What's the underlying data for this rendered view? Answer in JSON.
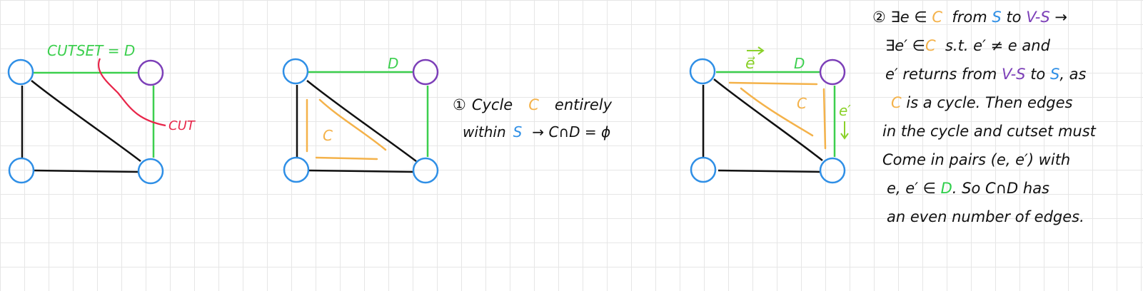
{
  "colors": {
    "vertex_s": "#2f8fe6",
    "vertex_vs": "#7c3fb8",
    "edge": "#111111",
    "cutset_edge": "#3ccf4e",
    "cut_line": "#e8264a",
    "cycle": "#f4b24a",
    "e_label": "#8ad12a"
  },
  "diagram1": {
    "cutset_label": "CUTSET = D",
    "cut_label": "CUT"
  },
  "diagram2": {
    "d_label": "D",
    "cycle_label": "C"
  },
  "note1": {
    "num": "①",
    "w_cycle": "Cycle",
    "w_c": "C",
    "w_entirely": "entirely",
    "w_within": "within",
    "w_s": "S",
    "w_result": "→ C∩D = ϕ"
  },
  "diagram3": {
    "e_label": "e⃗",
    "d_label": "D",
    "cycle_label": "C",
    "e_prime_label": "e′"
  },
  "note2": {
    "l1_a": "② ∃e ∈",
    "l1_c": "C",
    "l1_b": "from",
    "l1_s": "S",
    "l1_to": "to",
    "l1_vs": "V-S",
    "l1_arrow": "→",
    "l2_a": "∃e′ ∈",
    "l2_c": "C",
    "l2_b": "s.t. e′ ≠ e and",
    "l3_a": "e′ returns from",
    "l3_vs": "V-S",
    "l3_to": "to",
    "l3_s": "S",
    "l3_b": ", as",
    "l4_c": "C",
    "l4_b": "is a cycle. Then edges",
    "l5": "in the cycle and cutset must",
    "l6": "Come in pairs (e, e′) with",
    "l7_a": "e, e′ ∈",
    "l7_d": "D",
    "l7_b": ". So C∩D has",
    "l8": "an even number of edges."
  }
}
